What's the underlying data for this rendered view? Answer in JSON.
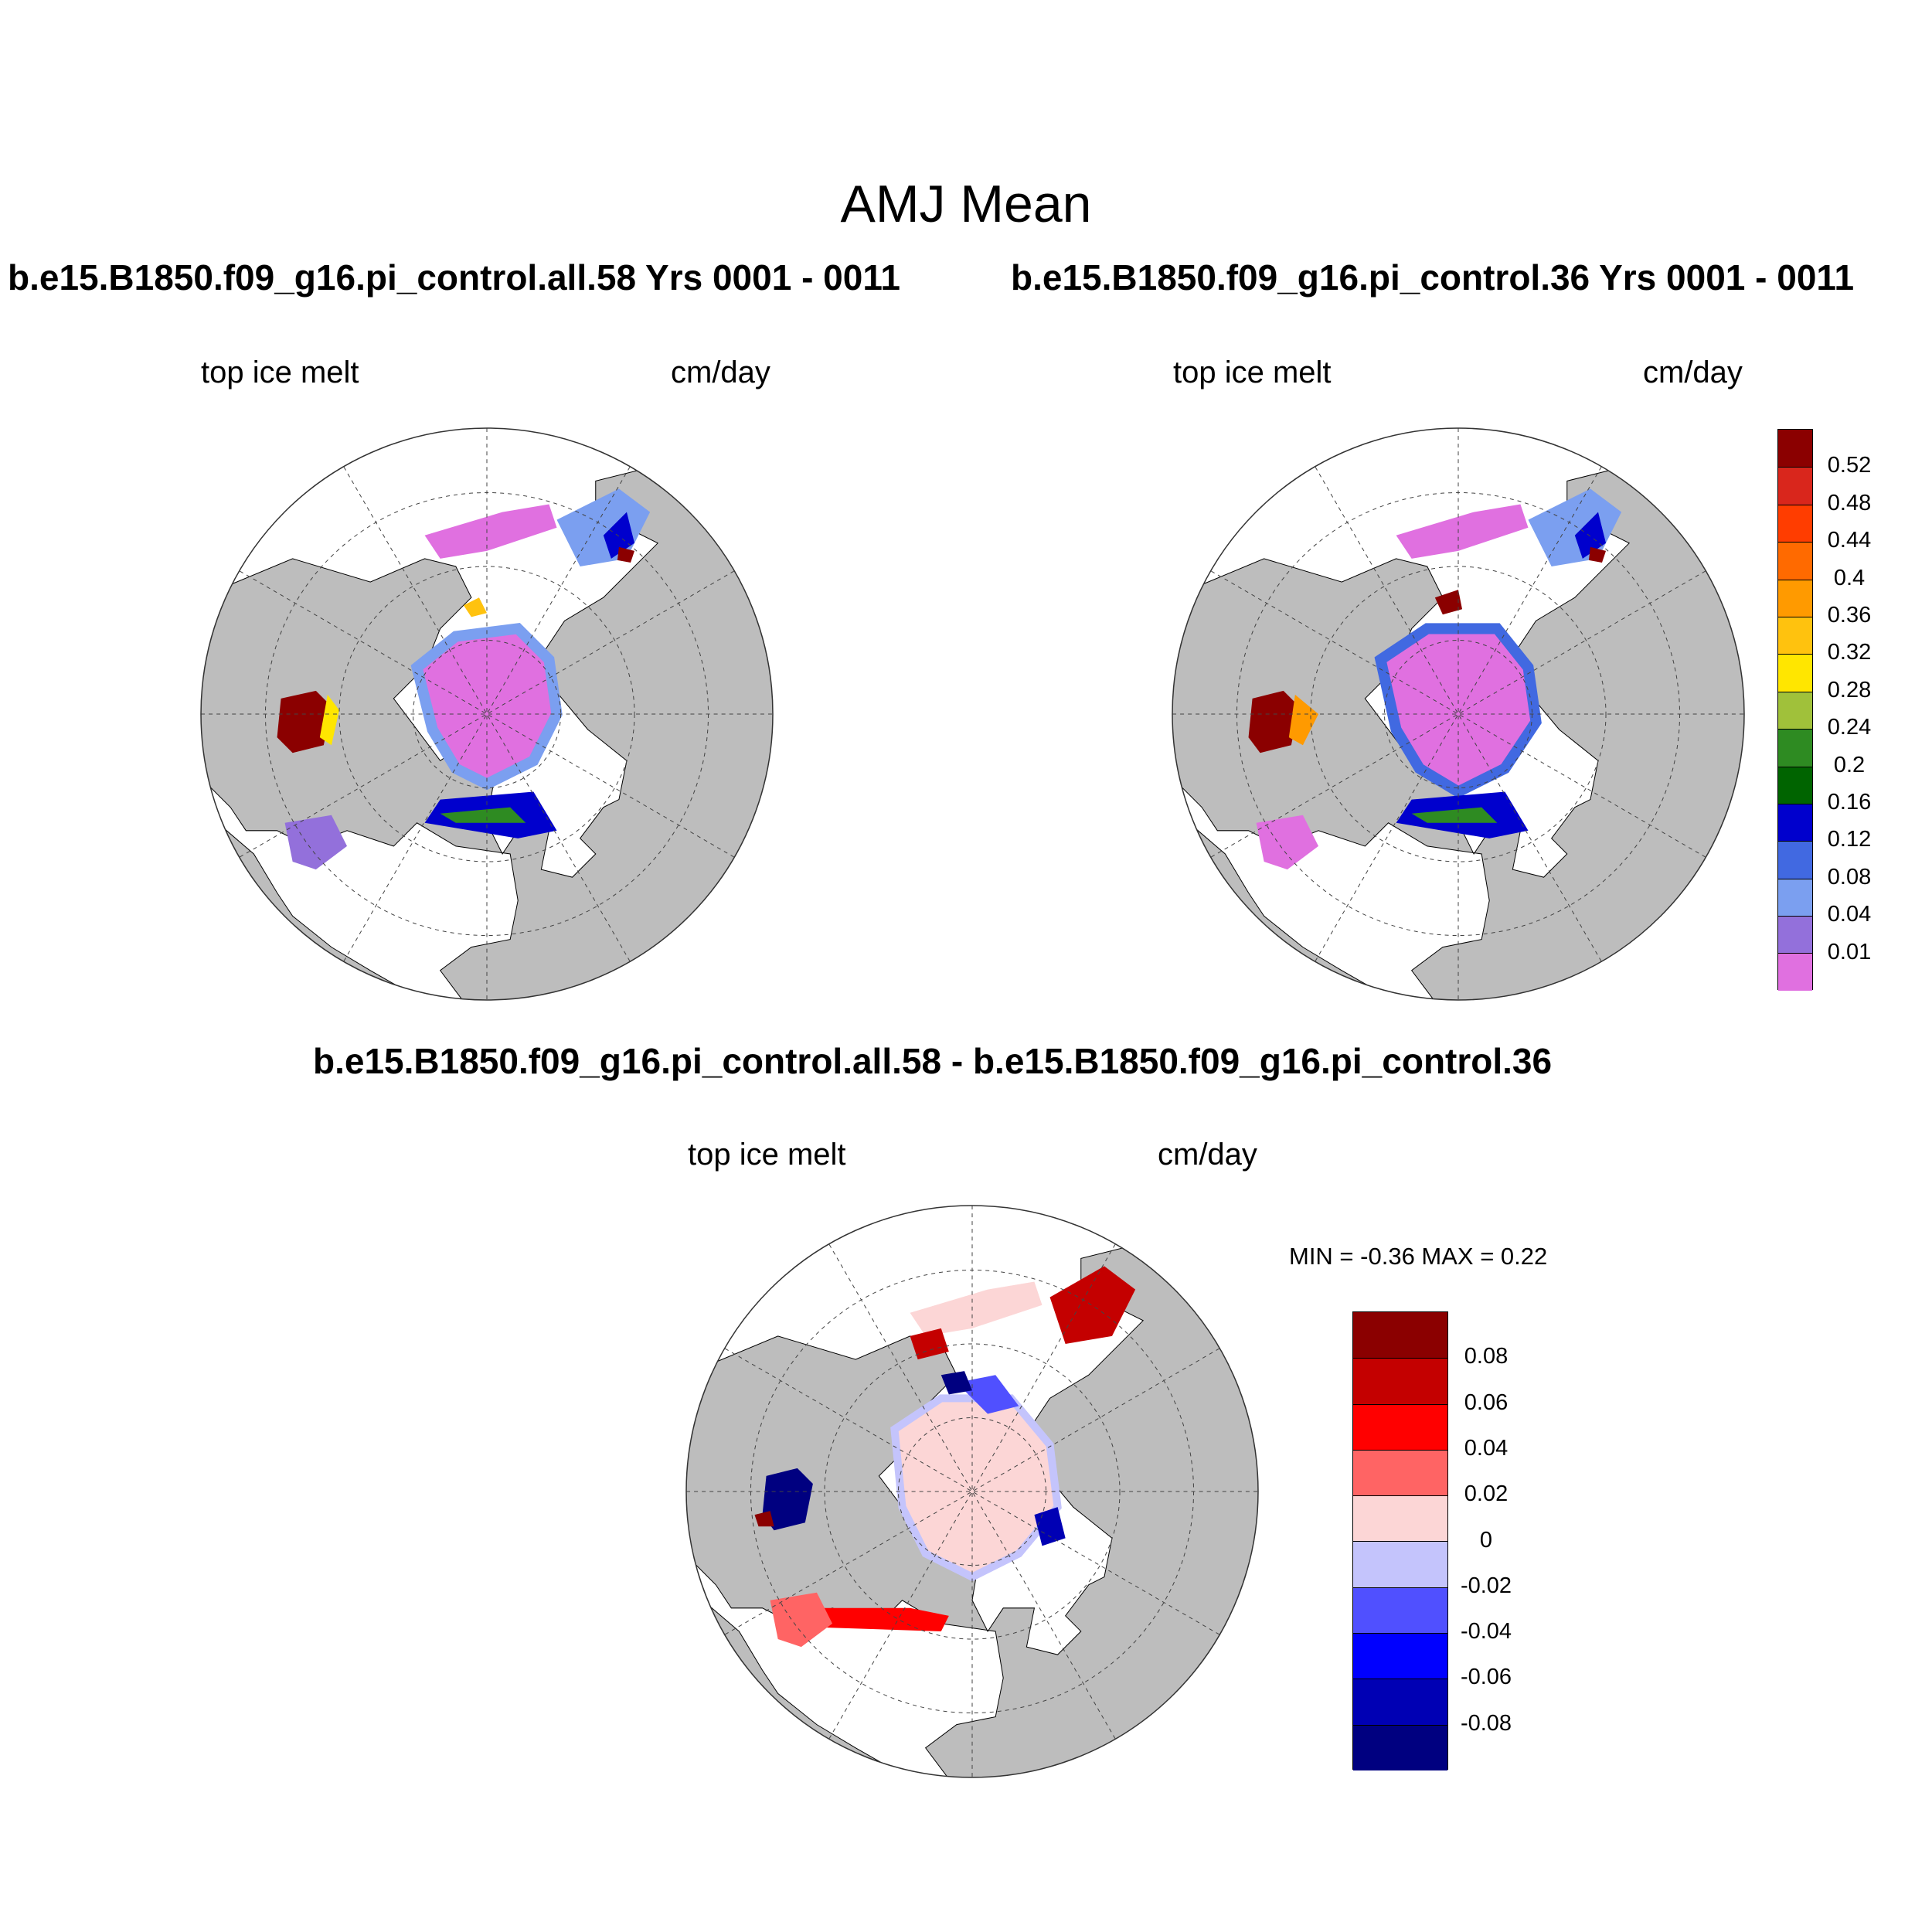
{
  "title": "AMJ Mean",
  "panels": [
    {
      "title": "b.e15.B1850.f09_g16.pi_control.all.58  Yrs 0001 - 0011",
      "left_label": "top ice melt",
      "right_label": "cm/day"
    },
    {
      "title": "b.e15.B1850.f09_g16.pi_control.36  Yrs 0001 - 0011",
      "left_label": "top ice melt",
      "right_label": "cm/day"
    },
    {
      "title": "b.e15.B1850.f09_g16.pi_control.all.58 - b.e15.B1850.f09_g16.pi_control.36",
      "left_label": "top ice melt",
      "right_label": "cm/day",
      "stats": "MIN =  -0.36 MAX =   0.22"
    }
  ],
  "colorbar_top": {
    "labels": [
      "0.52",
      "0.48",
      "0.44",
      "0.4",
      "0.36",
      "0.32",
      "0.28",
      "0.24",
      "0.2",
      "0.16",
      "0.12",
      "0.08",
      "0.04",
      "0.01"
    ],
    "colors": [
      "#8b0000",
      "#d9261c",
      "#ff3d00",
      "#ff6a00",
      "#ff9a00",
      "#ffc20e",
      "#ffe600",
      "#a0c13a",
      "#2e8b22",
      "#006400",
      "#0000cd",
      "#4169e1",
      "#7b9ff0",
      "#9370db",
      "#e070e0"
    ]
  },
  "colorbar_diff": {
    "labels": [
      "0.08",
      "0.06",
      "0.04",
      "0.02",
      "0",
      "-0.02",
      "-0.04",
      "-0.06",
      "-0.08"
    ],
    "colors": [
      "#8b0000",
      "#c40000",
      "#ff0000",
      "#ff6464",
      "#fcd6d6",
      "#c4c4fc",
      "#5050ff",
      "#0000ff",
      "#0000b4",
      "#000080"
    ]
  },
  "map_colors": {
    "land": "#bdbdbd",
    "ocean": "#ffffff"
  }
}
